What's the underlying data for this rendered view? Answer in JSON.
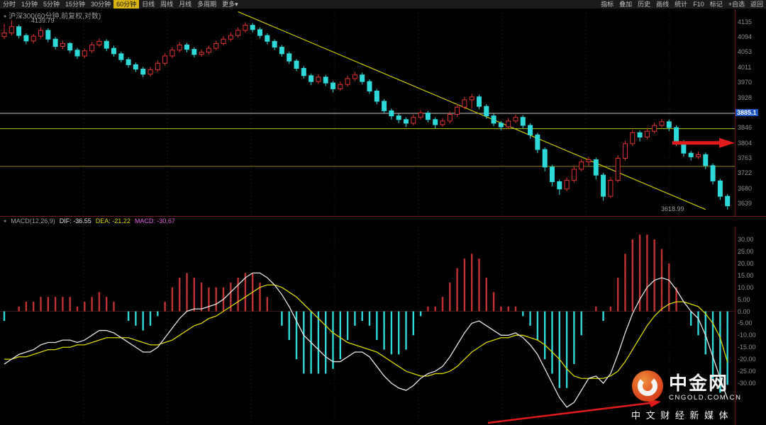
{
  "menu": {
    "left_items": [
      "分时",
      "1分钟",
      "5分钟",
      "15分钟",
      "30分钟",
      "60分钟",
      "日线",
      "周线",
      "月线",
      "多周期",
      "更多▾"
    ],
    "active_item": "60分钟",
    "right_items": [
      "指标",
      "叠加",
      "历史",
      "画线",
      "统计",
      "F10",
      "标记",
      "+自选",
      "返回"
    ]
  },
  "main_chart": {
    "title": "沪深300(60分钟,前复权,对数)",
    "peak_label": "4139.79",
    "trendline_end_label": "3618.99",
    "marker_label": "3885.1",
    "axis_labels": [
      "4135",
      "4094",
      "4053",
      "4011",
      "3970",
      "3928",
      "3885.1",
      "3846",
      "3804",
      "3763",
      "3722",
      "3680",
      "3639"
    ]
  },
  "macd_panel": {
    "indicator_label": "MACD(12,26,9)",
    "dif_label": "DIF: -36.55",
    "dea_label": "DEA: -21.22",
    "macd_label": "MACD: -30.67",
    "axis_labels": [
      "30.00",
      "25.00",
      "20.00",
      "15.00",
      "10.00",
      "5.00",
      "0.00",
      "-5.00",
      "-10.00",
      "-15.00",
      "-20.00",
      "-25.00",
      "-30.00"
    ]
  },
  "watermark": {
    "brand": "中金网",
    "domain": "CNGOLD.COM.CN",
    "tagline": "中 文 财 经 新 媒 体"
  },
  "colors": {
    "candle_up": "#e03232",
    "candle_down": "#2ed9d9",
    "hist_pos": "#c23232",
    "hist_neg": "#2ed9d9",
    "dif_line": "#e6e6e6",
    "dea_line": "#d8d800",
    "annotation_red": "#e11b1b",
    "marker_bg": "#1d55c4",
    "trendline": "#c8c800",
    "grid": "#221010",
    "panel_border": "#6b1b1b",
    "active_tab_bg": "#d9b310"
  },
  "chart_data": {
    "type": "candlestick",
    "title": "沪深300(60分钟,前复权,对数)",
    "period": "60分钟",
    "price_axis_range": [
      3639,
      4135
    ],
    "candles": [
      [
        4095,
        4130,
        4088,
        4105
      ],
      [
        4105,
        4139.79,
        4098,
        4122
      ],
      [
        4122,
        4128,
        4090,
        4098
      ],
      [
        4098,
        4104,
        4074,
        4083
      ],
      [
        4083,
        4102,
        4076,
        4096
      ],
      [
        4096,
        4120,
        4090,
        4112
      ],
      [
        4112,
        4118,
        4080,
        4088
      ],
      [
        4088,
        4094,
        4060,
        4068
      ],
      [
        4068,
        4084,
        4061,
        4076
      ],
      [
        4076,
        4080,
        4050,
        4058
      ],
      [
        4058,
        4064,
        4034,
        4042
      ],
      [
        4042,
        4062,
        4036,
        4056
      ],
      [
        4056,
        4080,
        4050,
        4072
      ],
      [
        4072,
        4090,
        4066,
        4082
      ],
      [
        4082,
        4088,
        4055,
        4063
      ],
      [
        4063,
        4070,
        4040,
        4048
      ],
      [
        4048,
        4054,
        4024,
        4032
      ],
      [
        4032,
        4038,
        4010,
        4018
      ],
      [
        4018,
        4024,
        3998,
        4006
      ],
      [
        4006,
        4012,
        3984,
        3992
      ],
      [
        3992,
        4012,
        3986,
        4004
      ],
      [
        4004,
        4030,
        3998,
        4022
      ],
      [
        4022,
        4050,
        4016,
        4042
      ],
      [
        4042,
        4066,
        4036,
        4058
      ],
      [
        4058,
        4080,
        4052,
        4072
      ],
      [
        4072,
        4078,
        4052,
        4060
      ],
      [
        4060,
        4066,
        4038,
        4046
      ],
      [
        4046,
        4060,
        4040,
        4052
      ],
      [
        4052,
        4070,
        4046,
        4063
      ],
      [
        4063,
        4084,
        4058,
        4076
      ],
      [
        4076,
        4096,
        4070,
        4088
      ],
      [
        4088,
        4106,
        4082,
        4098
      ],
      [
        4098,
        4120,
        4092,
        4112
      ],
      [
        4112,
        4134,
        4106,
        4126
      ],
      [
        4126,
        4132,
        4106,
        4114
      ],
      [
        4114,
        4120,
        4090,
        4098
      ],
      [
        4098,
        4104,
        4074,
        4082
      ],
      [
        4082,
        4088,
        4058,
        4066
      ],
      [
        4066,
        4072,
        4040,
        4048
      ],
      [
        4048,
        4054,
        4020,
        4028
      ],
      [
        4028,
        4034,
        4000,
        4008
      ],
      [
        4008,
        4014,
        3980,
        3988
      ],
      [
        3988,
        3994,
        3962,
        3972
      ],
      [
        3972,
        3992,
        3966,
        3984
      ],
      [
        3984,
        3990,
        3960,
        3968
      ],
      [
        3968,
        3974,
        3942,
        3952
      ],
      [
        3952,
        3972,
        3946,
        3964
      ],
      [
        3964,
        3988,
        3958,
        3980
      ],
      [
        3980,
        3998,
        3974,
        3990
      ],
      [
        3990,
        3996,
        3964,
        3972
      ],
      [
        3972,
        3978,
        3938,
        3946
      ],
      [
        3946,
        3952,
        3910,
        3918
      ],
      [
        3918,
        3924,
        3884,
        3892
      ],
      [
        3892,
        3898,
        3868,
        3878
      ],
      [
        3878,
        3884,
        3858,
        3868
      ],
      [
        3868,
        3874,
        3848,
        3858
      ],
      [
        3858,
        3882,
        3852,
        3874
      ],
      [
        3874,
        3894,
        3868,
        3886
      ],
      [
        3886,
        3892,
        3860,
        3868
      ],
      [
        3868,
        3874,
        3844,
        3854
      ],
      [
        3854,
        3872,
        3848,
        3864
      ],
      [
        3864,
        3890,
        3858,
        3882
      ],
      [
        3882,
        3910,
        3876,
        3902
      ],
      [
        3902,
        3930,
        3896,
        3922
      ],
      [
        3922,
        3938,
        3898,
        3930
      ],
      [
        3930,
        3936,
        3896,
        3904
      ],
      [
        3904,
        3910,
        3870,
        3878
      ],
      [
        3878,
        3884,
        3850,
        3858
      ],
      [
        3858,
        3864,
        3838,
        3848
      ],
      [
        3848,
        3872,
        3842,
        3864
      ],
      [
        3864,
        3882,
        3858,
        3874
      ],
      [
        3874,
        3880,
        3844,
        3852
      ],
      [
        3852,
        3858,
        3816,
        3826
      ],
      [
        3826,
        3832,
        3776,
        3786
      ],
      [
        3786,
        3792,
        3726,
        3738
      ],
      [
        3738,
        3744,
        3686,
        3698
      ],
      [
        3698,
        3704,
        3662,
        3678
      ],
      [
        3678,
        3710,
        3672,
        3702
      ],
      [
        3702,
        3740,
        3696,
        3732
      ],
      [
        3732,
        3760,
        3726,
        3752
      ],
      [
        3752,
        3766,
        3740,
        3758
      ],
      [
        3758,
        3764,
        3704,
        3716
      ],
      [
        3716,
        3722,
        3646,
        3658
      ],
      [
        3658,
        3710,
        3652,
        3702
      ],
      [
        3702,
        3770,
        3696,
        3762
      ],
      [
        3762,
        3810,
        3756,
        3802
      ],
      [
        3802,
        3840,
        3796,
        3832
      ],
      [
        3832,
        3838,
        3808,
        3820
      ],
      [
        3820,
        3844,
        3814,
        3836
      ],
      [
        3836,
        3860,
        3830,
        3852
      ],
      [
        3852,
        3870,
        3846,
        3862
      ],
      [
        3862,
        3868,
        3836,
        3846
      ],
      [
        3846,
        3852,
        3796,
        3806
      ],
      [
        3806,
        3812,
        3766,
        3776
      ],
      [
        3776,
        3782,
        3756,
        3766
      ],
      [
        3766,
        3780,
        3760,
        3772
      ],
      [
        3772,
        3778,
        3732,
        3742
      ],
      [
        3742,
        3748,
        3690,
        3700
      ],
      [
        3700,
        3706,
        3648,
        3658
      ],
      [
        3658,
        3664,
        3622,
        3632
      ]
    ],
    "macd": {
      "params": [
        12,
        26,
        9
      ],
      "axis_range": [
        -30,
        30
      ],
      "hist_formula": "2*(dif-dea)",
      "last": {
        "dif": -36.55,
        "dea": -21.22,
        "macd": -30.67
      },
      "dif": [
        -22,
        -20,
        -18,
        -17,
        -16,
        -14,
        -13,
        -13,
        -12,
        -12,
        -13,
        -12,
        -10,
        -8,
        -8,
        -9,
        -11,
        -13,
        -15,
        -17,
        -17,
        -15,
        -11,
        -7,
        -3,
        0,
        1,
        1,
        2,
        3,
        5,
        8,
        11,
        14,
        16,
        16,
        14,
        11,
        7,
        2,
        -4,
        -10,
        -13,
        -16,
        -19,
        -21,
        -21,
        -19,
        -17,
        -17,
        -19,
        -23,
        -27,
        -30,
        -32,
        -33,
        -31,
        -28,
        -26,
        -25,
        -23,
        -19,
        -14,
        -9,
        -5,
        -4,
        -6,
        -8,
        -10,
        -10,
        -9,
        -11,
        -14,
        -18,
        -24,
        -30,
        -36,
        -40,
        -38,
        -33,
        -28,
        -27,
        -30,
        -26,
        -18,
        -9,
        -1,
        5,
        10,
        13,
        14,
        13,
        9,
        4,
        0,
        -3,
        -10,
        -19,
        -28,
        -36.55
      ],
      "dea": [
        -20,
        -20,
        -19,
        -19,
        -18,
        -17,
        -16,
        -16,
        -15,
        -15,
        -14,
        -14,
        -13,
        -12,
        -11,
        -11,
        -11,
        -11,
        -12,
        -13,
        -14,
        -14,
        -13,
        -12,
        -10,
        -8,
        -6,
        -5,
        -3,
        -2,
        0,
        2,
        4,
        6,
        8,
        10,
        11,
        11,
        10,
        8,
        6,
        3,
        0,
        -3,
        -6,
        -9,
        -11,
        -13,
        -14,
        -15,
        -16,
        -17,
        -19,
        -21,
        -23,
        -25,
        -26,
        -27,
        -27,
        -26,
        -26,
        -25,
        -23,
        -20,
        -17,
        -15,
        -13,
        -12,
        -11,
        -11,
        -10,
        -10,
        -11,
        -12,
        -14,
        -17,
        -20,
        -24,
        -27,
        -28,
        -28,
        -28,
        -28,
        -27,
        -25,
        -21,
        -16,
        -11,
        -6,
        -2,
        1,
        3,
        4,
        4,
        3,
        2,
        -1,
        -5,
        -11,
        -21.22
      ]
    },
    "annotations": {
      "horizontal_lines": [
        {
          "price": 3885.1,
          "color": "#c8c8c8"
        },
        {
          "price": 3843,
          "color": "#a8c818"
        },
        {
          "price": 3740,
          "color": "#8f7f1a"
        }
      ],
      "trendline": {
        "from": {
          "index": 32,
          "price": 4163
        },
        "to": {
          "index": 96,
          "price": 3622
        },
        "color": "#c8c800"
      },
      "arrow_price": 3804
    }
  }
}
